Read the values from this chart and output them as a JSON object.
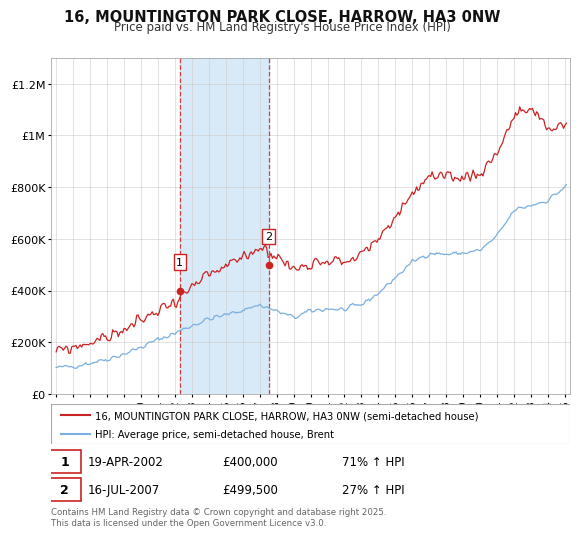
{
  "title": "16, MOUNTINGTON PARK CLOSE, HARROW, HA3 0NW",
  "subtitle": "Price paid vs. HM Land Registry's House Price Index (HPI)",
  "legend_line1": "16, MOUNTINGTON PARK CLOSE, HARROW, HA3 0NW (semi-detached house)",
  "legend_line2": "HPI: Average price, semi-detached house, Brent",
  "footnote": "Contains HM Land Registry data © Crown copyright and database right 2025.\nThis data is licensed under the Open Government Licence v3.0.",
  "sale1_label": "1",
  "sale1_date": "19-APR-2002",
  "sale1_price": "£400,000",
  "sale1_hpi": "71% ↑ HPI",
  "sale1_year": 2002.29,
  "sale1_value": 400000,
  "sale2_label": "2",
  "sale2_date": "16-JUL-2007",
  "sale2_price": "£499,500",
  "sale2_hpi": "27% ↑ HPI",
  "sale2_year": 2007.54,
  "sale2_value": 499500,
  "hpi_color": "#7ab0e0",
  "price_color": "#cc2222",
  "shaded_color": "#d8eaf8",
  "ylim": [
    0,
    1300000
  ],
  "yticks": [
    0,
    200000,
    400000,
    600000,
    800000,
    1000000,
    1200000
  ],
  "ytick_labels": [
    "£0",
    "£200K",
    "£400K",
    "£600K",
    "£800K",
    "£1M",
    "£1.2M"
  ],
  "xtick_years": [
    1995,
    1996,
    1997,
    1998,
    1999,
    2000,
    2001,
    2002,
    2003,
    2004,
    2005,
    2006,
    2007,
    2008,
    2009,
    2010,
    2011,
    2012,
    2013,
    2014,
    2015,
    2016,
    2017,
    2018,
    2019,
    2020,
    2021,
    2022,
    2023,
    2024,
    2025
  ]
}
